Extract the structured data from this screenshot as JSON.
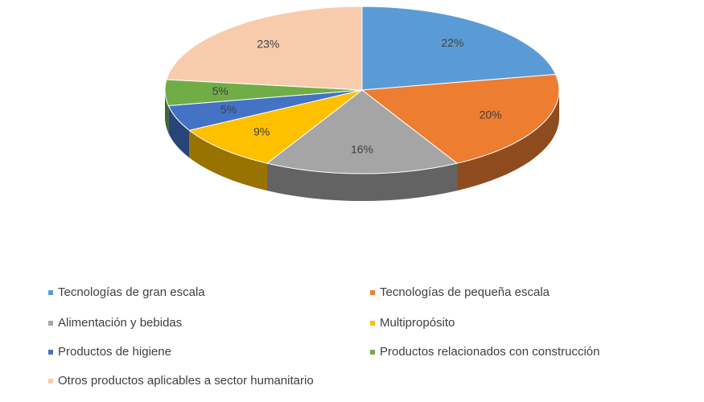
{
  "chart_data": {
    "type": "pie",
    "categories": [
      "Tecnologías de gran escala",
      "Tecnologías de pequeña escala",
      "Alimentación y bebidas",
      "Multipropósito",
      "Productos de higiene",
      "Productos relacionados con construcción",
      "Otros productos aplicables a sector humanitario"
    ],
    "values": [
      22,
      20,
      16,
      9,
      5,
      5,
      23
    ],
    "value_labels": [
      "22%",
      "20%",
      "16%",
      "9%",
      "5%",
      "5%",
      "23%"
    ],
    "colors": [
      "#5b9bd5",
      "#ed7d31",
      "#a5a5a5",
      "#ffc000",
      "#4472c4",
      "#70ad47",
      "#f8cbad"
    ]
  }
}
